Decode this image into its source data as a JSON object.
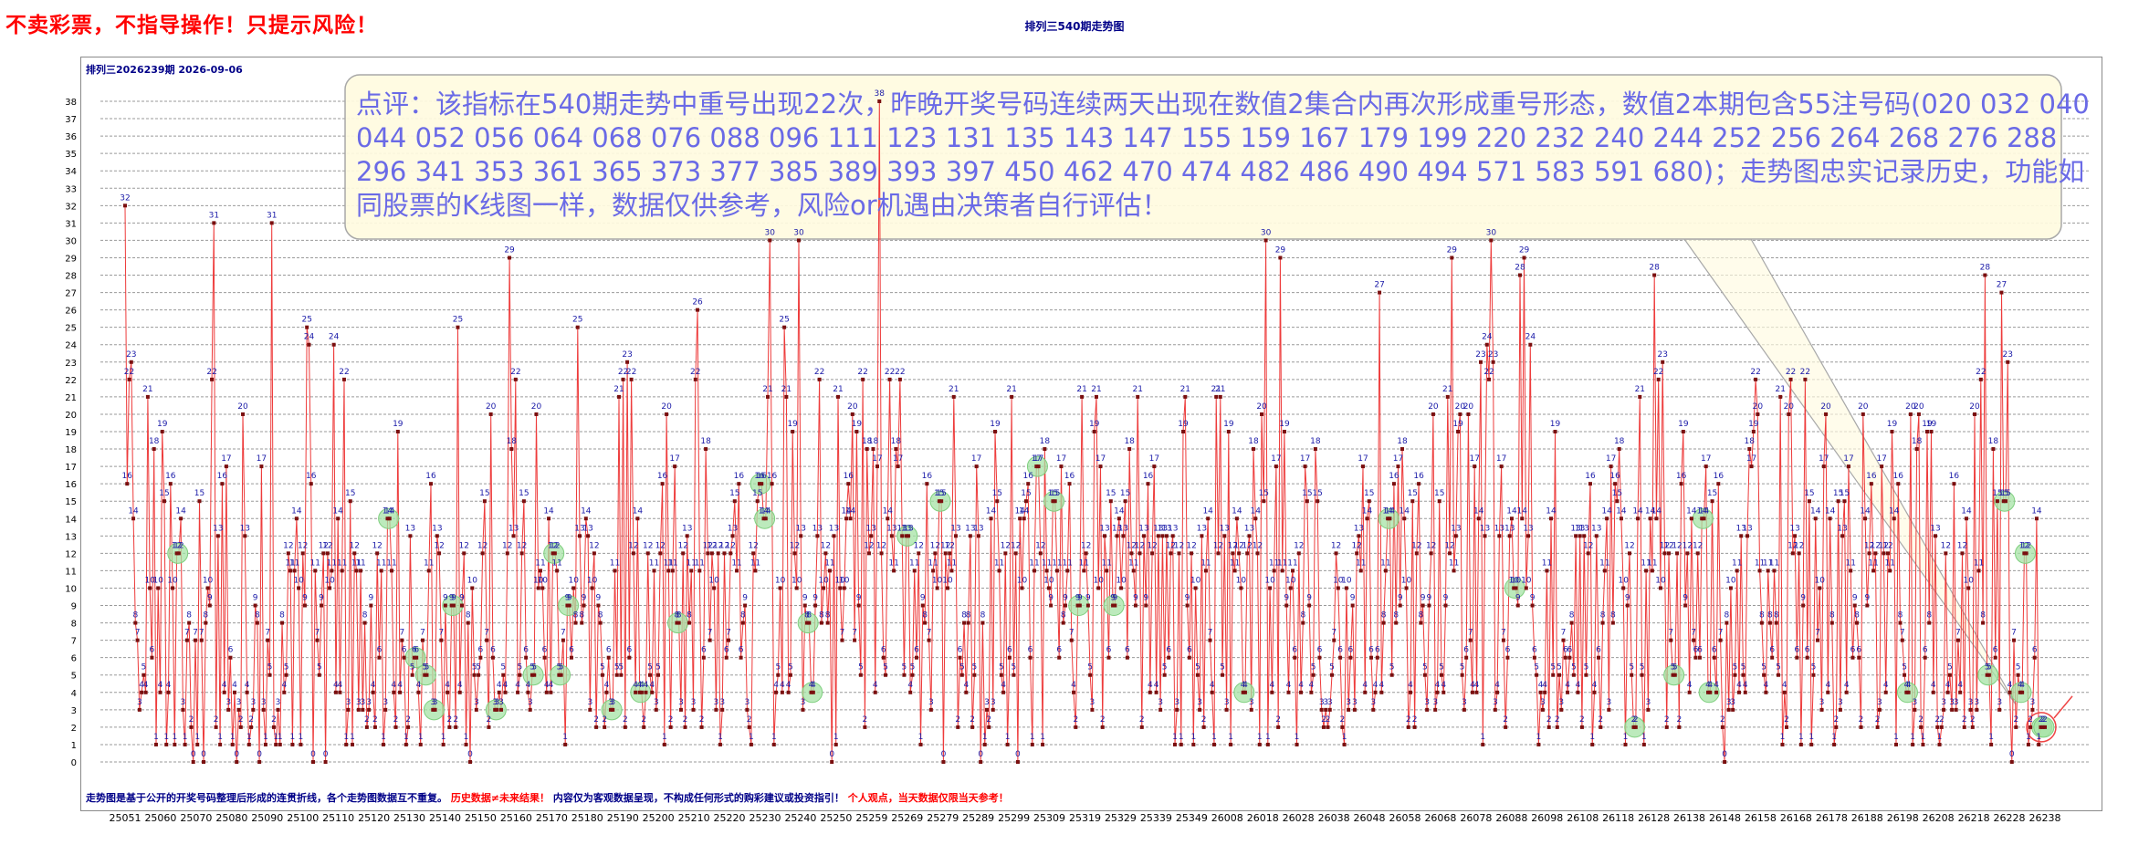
{
  "header": {
    "warning": "不卖彩票，不指导操作！只提示风险！",
    "title": "排列三540期走势图"
  },
  "chart_panel": {
    "issue_info": "排列三2026239期  2026-09-06",
    "callout": "点评：该指标在540期走势中重号出现22次，昨晚开奖号码连续两天出现在数值2集合内再次形成重号形态，数值2本期包含55注号码(020 032 040 044 052 056 064 068 076 088 096 111 123 131 135 143 147 155 159 167 179 199 220 232 240 244 252 256 264 268 276 288 296 341 353 361 365 373 377 385 389 393 397 450 462 470 474 482 486 490 494 571 583 591 680)；走势图忠实记录历史，功能如同股票的K线图一样，数据仅供参考，风险or机遇由决策者自行评估！",
    "footer_part1": "走势图是基于公开的开奖号码整理后形成的连贯折线，各个走势图数据互不重复。",
    "footer_part2": "历史数据≠未来结果！",
    "footer_part3": "内容仅为客观数据呈现，不构成任何形式的购彩建议或投资指引！",
    "footer_part4": "个人观点，当天数据仅限当天参考！"
  },
  "colors": {
    "line": "#ee3b3b",
    "point": "#7a0f0f",
    "label": "#1a1aa8",
    "repeat_marker": "#a6e3a6",
    "callout_bg": "#fffbe0",
    "callout_text": "#6a6ae6",
    "current_circle": "#ee4444"
  },
  "chart_data": {
    "type": "line",
    "y_ticks": [
      0,
      1,
      2,
      3,
      4,
      5,
      6,
      7,
      8,
      9,
      10,
      11,
      12,
      13,
      14,
      15,
      16,
      17,
      18,
      19,
      20,
      21,
      22,
      23,
      24,
      25,
      26,
      27,
      28,
      29,
      30,
      31,
      32,
      33,
      34,
      35,
      36,
      37,
      38
    ],
    "ylim": [
      0,
      38
    ],
    "grid": true,
    "x_tick_labels": [
      "25051",
      "25060",
      "25070",
      "25080",
      "25090",
      "25100",
      "25110",
      "25120",
      "25130",
      "25140",
      "25150",
      "25160",
      "25170",
      "25180",
      "25190",
      "25200",
      "25210",
      "25220",
      "25230",
      "25240",
      "25250",
      "25259",
      "25269",
      "25279",
      "25289",
      "25299",
      "25309",
      "25319",
      "25329",
      "25339",
      "25349",
      "26008",
      "26018",
      "26028",
      "26038",
      "26048",
      "26058",
      "26068",
      "26078",
      "26088",
      "26098",
      "26108",
      "26118",
      "26128",
      "26138",
      "26148",
      "26158",
      "26168",
      "26178",
      "26188",
      "26198",
      "26208",
      "26218",
      "26228",
      "26238"
    ],
    "values": [
      32,
      16,
      22,
      23,
      14,
      8,
      7,
      3,
      4,
      5,
      4,
      21,
      10,
      6,
      18,
      1,
      10,
      4,
      19,
      15,
      1,
      4,
      16,
      10,
      1,
      12,
      12,
      14,
      3,
      1,
      7,
      8,
      2,
      0,
      7,
      1,
      15,
      7,
      0,
      8,
      10,
      9,
      22,
      31,
      2,
      13,
      1,
      16,
      4,
      17,
      3,
      6,
      1,
      4,
      0,
      3,
      2,
      20,
      13,
      4,
      1,
      2,
      3,
      9,
      8,
      0,
      17,
      3,
      1,
      7,
      5,
      31,
      2,
      1,
      3,
      1,
      8,
      4,
      5,
      12,
      11,
      1,
      11,
      14,
      10,
      1,
      12,
      9,
      25,
      24,
      16,
      0,
      11,
      7,
      5,
      9,
      12,
      0,
      12,
      10,
      11,
      24,
      4,
      14,
      4,
      11,
      22,
      1,
      3,
      15,
      1,
      12,
      11,
      3,
      11,
      3,
      8,
      2,
      3,
      9,
      4,
      2,
      12,
      6,
      11,
      1,
      3,
      14,
      14,
      11,
      4,
      2,
      19,
      4,
      7,
      6,
      1,
      2,
      13,
      5,
      6,
      6,
      4,
      1,
      7,
      5,
      5,
      11,
      16,
      3,
      3,
      13,
      12,
      7,
      1,
      9,
      4,
      2,
      9,
      9,
      2,
      25,
      4,
      9,
      12,
      1,
      8,
      0,
      10,
      5,
      3,
      5,
      6,
      12,
      15,
      7,
      2,
      20,
      6,
      3,
      3,
      4,
      3,
      5,
      4,
      12,
      29,
      18,
      13,
      22,
      4,
      5,
      12,
      15,
      6,
      4,
      3,
      5,
      5,
      20,
      10,
      11,
      10,
      6,
      4,
      14,
      4,
      12,
      12,
      11,
      5,
      5,
      7,
      1,
      9,
      9,
      6,
      10,
      8,
      25,
      13,
      8,
      9,
      14,
      13,
      3,
      10,
      12,
      2,
      9,
      8,
      5,
      2,
      4,
      6,
      3,
      3,
      11,
      5,
      21,
      5,
      22,
      2,
      23,
      6,
      22,
      12,
      4,
      14,
      4,
      4,
      2,
      4,
      12,
      5,
      4,
      11,
      3,
      5,
      12,
      16,
      1,
      20,
      11,
      2,
      11,
      17,
      8,
      8,
      3,
      12,
      2,
      13,
      8,
      11,
      3,
      22,
      26,
      11,
      2,
      6,
      18,
      12,
      7,
      12,
      10,
      3,
      12,
      1,
      3,
      12,
      6,
      7,
      12,
      13,
      15,
      11,
      16,
      6,
      8,
      9,
      3,
      2,
      1,
      12,
      11,
      15,
      16,
      16,
      14,
      14,
      21,
      30,
      16,
      1,
      4,
      5,
      10,
      4,
      25,
      21,
      4,
      5,
      19,
      12,
      10,
      30,
      13,
      3,
      9,
      8,
      8,
      4,
      4,
      9,
      13,
      22,
      8,
      10,
      12,
      8,
      11,
      0,
      13,
      1,
      21,
      10,
      7,
      10,
      14,
      16,
      14,
      20,
      7,
      19,
      9,
      5,
      22,
      2,
      18,
      12,
      13,
      18,
      4,
      17,
      38,
      12,
      6,
      5,
      14,
      22,
      13,
      11,
      18,
      17,
      22,
      13,
      5,
      13,
      13,
      4,
      5,
      11,
      6,
      12,
      1,
      9,
      8,
      16,
      7,
      3,
      11,
      12,
      10,
      15,
      15,
      0,
      12,
      10,
      12,
      11,
      21,
      13,
      2,
      6,
      5,
      8,
      4,
      8,
      13,
      2,
      5,
      17,
      13,
      0,
      8,
      1,
      3,
      2,
      14,
      3,
      19,
      15,
      11,
      5,
      4,
      12,
      1,
      6,
      21,
      5,
      12,
      0,
      14,
      10,
      14,
      15,
      16,
      6,
      1,
      11,
      17,
      17,
      12,
      1,
      18,
      11,
      10,
      9,
      15,
      15,
      11,
      6,
      17,
      8,
      9,
      11,
      16,
      7,
      4,
      2,
      9,
      9,
      21,
      11,
      12,
      9,
      5,
      3,
      19,
      21,
      10,
      17,
      2,
      13,
      11,
      6,
      15,
      9,
      9,
      13,
      14,
      10,
      13,
      15,
      6,
      18,
      12,
      11,
      9,
      21,
      12,
      2,
      13,
      9,
      16,
      4,
      12,
      17,
      4,
      13,
      3,
      13,
      5,
      13,
      6,
      12,
      13,
      1,
      3,
      12,
      1,
      19,
      21,
      9,
      6,
      12,
      1,
      10,
      5,
      3,
      13,
      2,
      11,
      14,
      7,
      4,
      1,
      21,
      12,
      21,
      5,
      13,
      3,
      19,
      1,
      12,
      11,
      14,
      12,
      10,
      4,
      4,
      12,
      13,
      3,
      18,
      14,
      12,
      1,
      20,
      15,
      30,
      1,
      10,
      4,
      11,
      17,
      2,
      29,
      11,
      19,
      9,
      4,
      10,
      11,
      6,
      1,
      12,
      4,
      8,
      17,
      15,
      9,
      4,
      5,
      18,
      15,
      6,
      3,
      2,
      3,
      2,
      3,
      5,
      7,
      12,
      10,
      6,
      2,
      1,
      10,
      3,
      6,
      9,
      3,
      12,
      13,
      11,
      17,
      4,
      14,
      15,
      6,
      3,
      4,
      6,
      27,
      4,
      8,
      11,
      14,
      14,
      5,
      16,
      8,
      17,
      9,
      18,
      14,
      10,
      2,
      4,
      15,
      2,
      12,
      16,
      8,
      9,
      5,
      3,
      9,
      12,
      20,
      3,
      4,
      15,
      5,
      4,
      9,
      21,
      12,
      29,
      11,
      13,
      19,
      20,
      5,
      3,
      6,
      20,
      7,
      4,
      17,
      4,
      14,
      23,
      1,
      13,
      24,
      22,
      30,
      23,
      3,
      4,
      13,
      17,
      7,
      2,
      6,
      13,
      14,
      10,
      10,
      9,
      28,
      14,
      29,
      10,
      13,
      24,
      9,
      6,
      5,
      1,
      4,
      3,
      4,
      11,
      2,
      14,
      5,
      19,
      2,
      5,
      3,
      7,
      6,
      4,
      6,
      8,
      5,
      13,
      4,
      13,
      2,
      13,
      5,
      12,
      16,
      1,
      4,
      13,
      6,
      2,
      8,
      11,
      14,
      3,
      17,
      8,
      16,
      15,
      18,
      14,
      10,
      1,
      9,
      12,
      5,
      2,
      2,
      14,
      21,
      5,
      1,
      11,
      3,
      14,
      11,
      28,
      14,
      22,
      10,
      23,
      12,
      2,
      12,
      7,
      5,
      5,
      12,
      2,
      16,
      19,
      9,
      12,
      4,
      14,
      7,
      6,
      12,
      6,
      14,
      14,
      17,
      4,
      4,
      15,
      6,
      4,
      16,
      7,
      2,
      0,
      8,
      3,
      10,
      3,
      5,
      11,
      4,
      13,
      5,
      4,
      13,
      18,
      17,
      19,
      22,
      20,
      11,
      8,
      5,
      4,
      11,
      8,
      6,
      11,
      8,
      5,
      21,
      1,
      4,
      2,
      20,
      22,
      12,
      13,
      6,
      12,
      1,
      9,
      22,
      6,
      15,
      1,
      5,
      14,
      7,
      10,
      3,
      17,
      20,
      4,
      14,
      8,
      1,
      2,
      15,
      3,
      13,
      15,
      4,
      17,
      11,
      6,
      9,
      8,
      6,
      2,
      20,
      14,
      9,
      12,
      16,
      11,
      12,
      2,
      3,
      17,
      12,
      4,
      12,
      11,
      19,
      14,
      1,
      16,
      8,
      7,
      5,
      4,
      4,
      20,
      1,
      3,
      18,
      20,
      2,
      1,
      6,
      19,
      8,
      19,
      4,
      13,
      2,
      1,
      2,
      3,
      12,
      4,
      5,
      3,
      16,
      3,
      7,
      4,
      12,
      2,
      14,
      10,
      3,
      2,
      20,
      3,
      11,
      22,
      8,
      28,
      5,
      5,
      1,
      18,
      6,
      15,
      3,
      27,
      15,
      15,
      23,
      4,
      0,
      7,
      2,
      5,
      4,
      4,
      12,
      12,
      1,
      2,
      3,
      6,
      14,
      1,
      2,
      2,
      2
    ]
  }
}
